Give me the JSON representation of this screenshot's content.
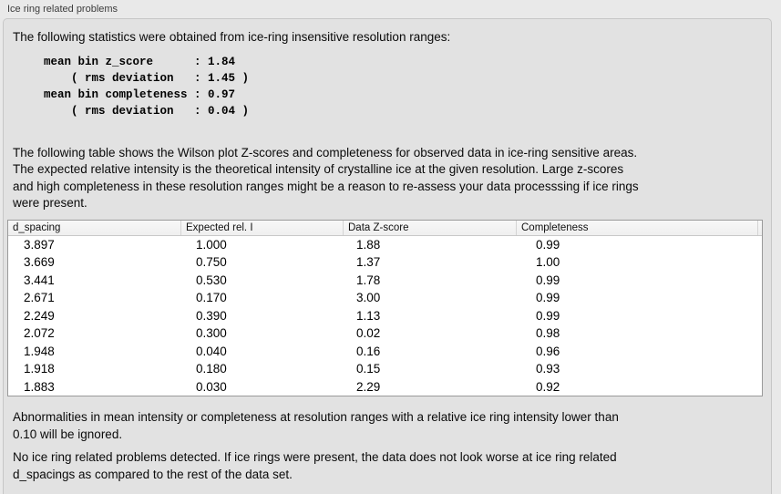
{
  "panel": {
    "title": "Ice ring related problems"
  },
  "intro": {
    "text": "The following statistics were obtained from ice-ring insensitive resolution ranges:"
  },
  "stats": {
    "lines": [
      "mean bin z_score      : 1.84",
      "    ( rms deviation   : 1.45 )",
      "mean bin completeness : 0.97",
      "    ( rms deviation   : 0.04 )"
    ]
  },
  "description": {
    "text": "The following table shows the Wilson plot Z-scores and completeness for observed data in ice-ring sensitive areas.\nThe expected relative intensity is the theoretical intensity of crystalline ice at the given resolution. Large z-scores\nand high completeness in these resolution ranges might be a reason to re-assess your data processsing if ice rings\nwere present."
  },
  "table": {
    "columns": [
      "d_spacing",
      "Expected rel. I",
      "Data Z-score",
      "Completeness"
    ],
    "rows": [
      [
        "3.897",
        "1.000",
        "1.88",
        "0.99"
      ],
      [
        "3.669",
        "0.750",
        "1.37",
        "1.00"
      ],
      [
        "3.441",
        "0.530",
        "1.78",
        "0.99"
      ],
      [
        "2.671",
        "0.170",
        "3.00",
        "0.99"
      ],
      [
        "2.249",
        "0.390",
        "1.13",
        "0.99"
      ],
      [
        "2.072",
        "0.300",
        "0.02",
        "0.98"
      ],
      [
        "1.948",
        "0.040",
        "0.16",
        "0.96"
      ],
      [
        "1.918",
        "0.180",
        "0.15",
        "0.93"
      ],
      [
        "1.883",
        "0.030",
        "2.29",
        "0.92"
      ]
    ]
  },
  "notes": {
    "ignore_note": "Abnormalities in mean intensity or completeness at resolution ranges with a relative ice ring intensity lower than\n0.10 will be ignored.",
    "conclusion": "No ice ring related problems detected. If ice rings were present, the data does not look worse at ice ring related\nd_spacings as compared to the rest of the data set."
  },
  "colors": {
    "page_bg": "#e9e9e9",
    "groupbox_bg": "#e2e2e2",
    "groupbox_border": "#c6c6c6",
    "table_border": "#9a9a9a",
    "table_header_bg": "#f4f4f4",
    "table_body_bg": "#ffffff"
  }
}
